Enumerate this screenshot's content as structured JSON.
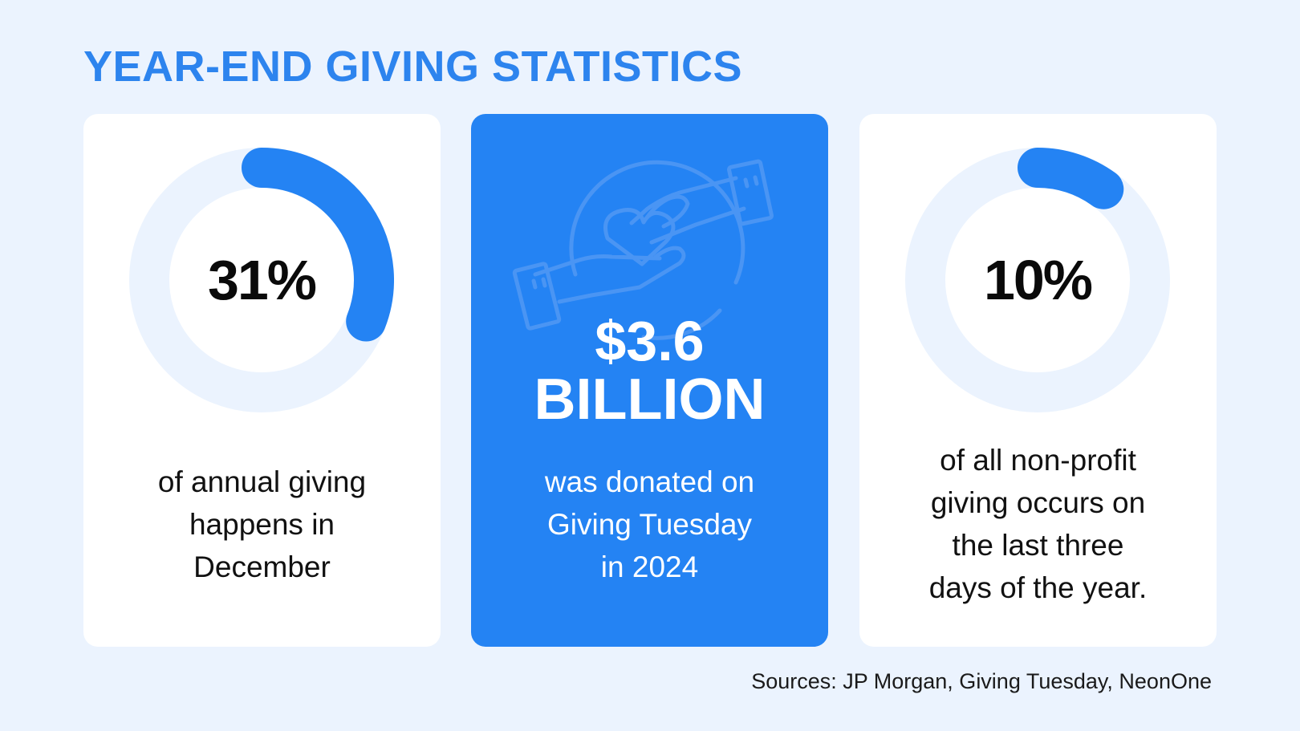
{
  "title": "YEAR-END GIVING STATISTICS",
  "colors": {
    "accent": "#2483f3",
    "title": "#2d84ee",
    "background": "#ebf3fe",
    "ring_track": "#ebf3fe"
  },
  "cards": [
    {
      "value": "31%",
      "percent": 31,
      "lines": [
        "of annual giving",
        "happens in",
        "December"
      ]
    },
    {
      "icon": "giving-hands-heart-icon",
      "amount": "$3.6",
      "unit": "BILLION",
      "lines": [
        "was donated on",
        "Giving Tuesday",
        "in 2024"
      ]
    },
    {
      "value": "10%",
      "percent": 10,
      "lines": [
        "of all non-profit",
        "giving occurs on",
        "the last three",
        "days of the year."
      ]
    }
  ],
  "sources": "Sources: JP Morgan, Giving Tuesday, NeonOne"
}
